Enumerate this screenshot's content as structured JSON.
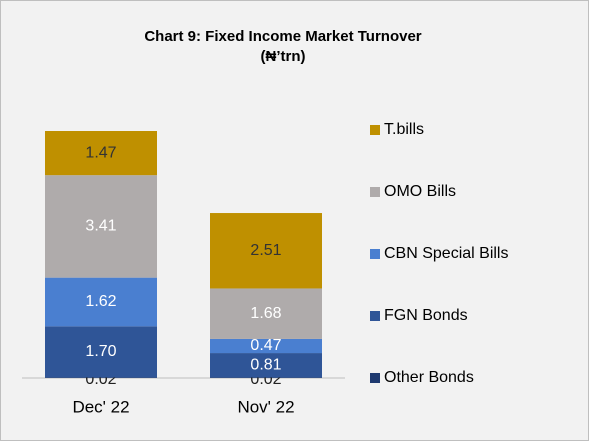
{
  "chart_data": {
    "type": "stacked_bar",
    "title": "Chart 9: Fixed Income Market Turnover",
    "subtitle": "(₦’trn)",
    "categories": [
      "Dec' 22",
      "Nov' 22"
    ],
    "series": [
      {
        "name": "Other Bonds",
        "color": "#1f3a70",
        "label_color": "#222222",
        "values": [
          0.02,
          0.02
        ],
        "value_labels": [
          "0.02",
          "0.02"
        ]
      },
      {
        "name": "FGN Bonds",
        "color": "#2f5597",
        "label_color": "#ffffff",
        "values": [
          1.7,
          0.81
        ],
        "value_labels": [
          "1.70",
          "0.81"
        ]
      },
      {
        "name": "CBN Special Bills",
        "color": "#4a7fd0",
        "label_color": "#ffffff",
        "values": [
          1.62,
          0.47
        ],
        "value_labels": [
          "1.62",
          "0.47"
        ]
      },
      {
        "name": "OMO Bills",
        "color": "#afabab",
        "label_color": "#ffffff",
        "values": [
          3.41,
          1.68
        ],
        "value_labels": [
          "3.41",
          "1.68"
        ]
      },
      {
        "name": "T.bills",
        "color": "#bf9000",
        "label_color": "#333333",
        "values": [
          1.47,
          2.51
        ],
        "value_labels": [
          "1.47",
          "2.51"
        ]
      }
    ],
    "legend": "right"
  }
}
